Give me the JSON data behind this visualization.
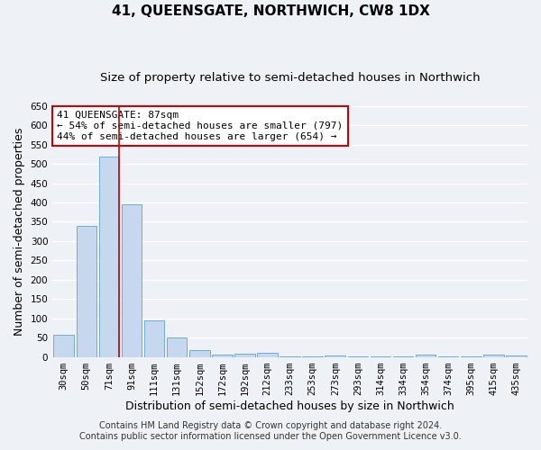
{
  "title": "41, QUEENSGATE, NORTHWICH, CW8 1DX",
  "subtitle": "Size of property relative to semi-detached houses in Northwich",
  "xlabel": "Distribution of semi-detached houses by size in Northwich",
  "ylabel": "Number of semi-detached properties",
  "categories": [
    "30sqm",
    "50sqm",
    "71sqm",
    "91sqm",
    "111sqm",
    "131sqm",
    "152sqm",
    "172sqm",
    "192sqm",
    "212sqm",
    "233sqm",
    "253sqm",
    "273sqm",
    "293sqm",
    "314sqm",
    "334sqm",
    "354sqm",
    "374sqm",
    "395sqm",
    "415sqm",
    "435sqm"
  ],
  "values": [
    57,
    340,
    518,
    395,
    95,
    50,
    18,
    5,
    8,
    10,
    2,
    2,
    3,
    1,
    1,
    1,
    5,
    1,
    1,
    5,
    3
  ],
  "bar_color": "#c5d8ed",
  "bar_edge_color": "#6baed6",
  "vline_x_index": 2,
  "vline_color": "#cc0000",
  "annotation_title": "41 QUEENSGATE: 87sqm",
  "annotation_line1": "← 54% of semi-detached houses are smaller (797)",
  "annotation_line2": "44% of semi-detached houses are larger (654) →",
  "annotation_box_color": "#ffffff",
  "annotation_box_edge_color": "#cc0000",
  "ylim": [
    0,
    650
  ],
  "yticks": [
    0,
    50,
    100,
    150,
    200,
    250,
    300,
    350,
    400,
    450,
    500,
    550,
    600,
    650
  ],
  "footer1": "Contains HM Land Registry data © Crown copyright and database right 2024.",
  "footer2": "Contains public sector information licensed under the Open Government Licence v3.0.",
  "bg_color": "#eef2f7",
  "grid_color": "#ffffff",
  "title_fontsize": 11,
  "subtitle_fontsize": 9.5,
  "axis_label_fontsize": 9,
  "tick_fontsize": 7.5,
  "annotation_fontsize": 8,
  "footer_fontsize": 7
}
